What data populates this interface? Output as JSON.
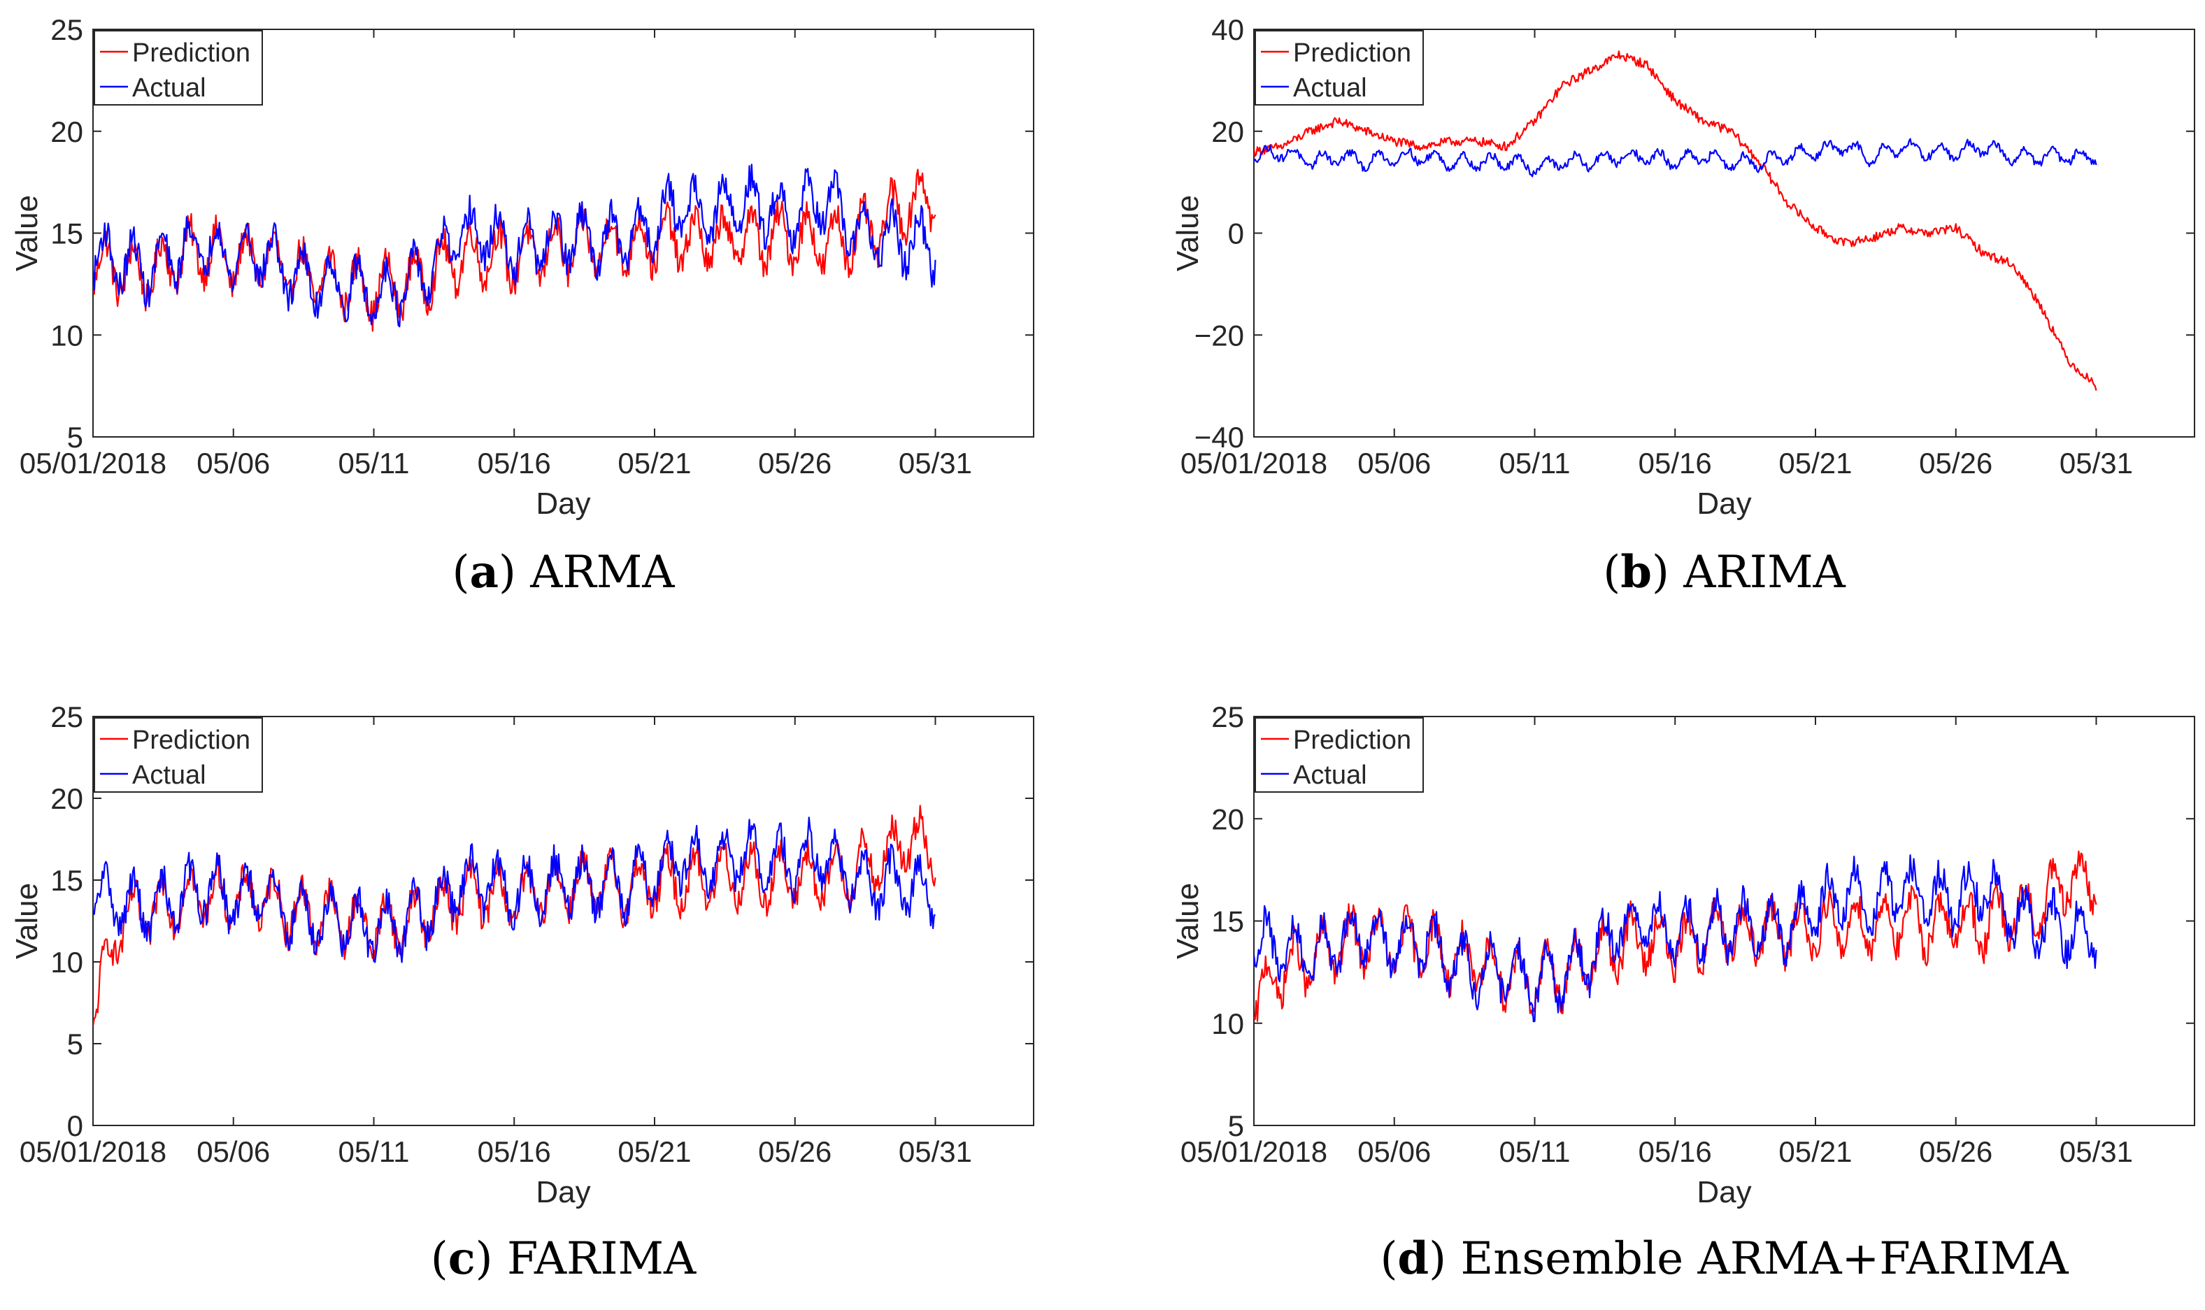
{
  "colors": {
    "prediction": "#ff0000",
    "actual": "#0000ff",
    "axis": "#262626"
  },
  "chart_data": [
    {
      "type": "line",
      "caption_label": "a",
      "caption_text": "ARMA",
      "xlabel": "Day",
      "ylabel": "Value",
      "ylim": [
        5,
        25
      ],
      "yticks": [
        5,
        10,
        15,
        20,
        25
      ],
      "xlim": [
        0,
        33.5
      ],
      "xticks": [
        0,
        5,
        10,
        15,
        20,
        25,
        30
      ],
      "xtick_labels": [
        "05/01/2018",
        "05/06",
        "05/11",
        "05/16",
        "05/21",
        "05/26",
        "05/31"
      ],
      "x_data_end": 30,
      "legend_position": "top-left",
      "series": [
        {
          "name": "Prediction",
          "color": "#ff0000",
          "x": [
            0,
            1,
            2,
            3,
            4,
            5,
            6,
            7,
            8,
            9,
            10,
            11,
            12,
            13,
            14,
            15,
            16,
            17,
            18,
            19,
            20,
            21,
            22,
            23,
            24,
            25,
            26,
            27,
            28,
            29,
            30
          ],
          "values": [
            13.5,
            13.2,
            13.0,
            13.8,
            14.2,
            13.6,
            13.9,
            13.1,
            12.8,
            12.6,
            12.2,
            12.5,
            13.0,
            13.8,
            14.0,
            13.7,
            14.1,
            14.3,
            14.5,
            14.4,
            14.6,
            14.7,
            14.6,
            14.8,
            14.7,
            14.9,
            14.5,
            14.8,
            15.2,
            16.5,
            16.8
          ]
        },
        {
          "name": "Actual",
          "color": "#0000ff",
          "x": [
            0,
            1,
            2,
            3,
            4,
            5,
            6,
            7,
            8,
            9,
            10,
            11,
            12,
            13,
            14,
            15,
            16,
            17,
            18,
            19,
            20,
            21,
            22,
            23,
            24,
            25,
            26,
            27,
            28,
            29,
            30
          ],
          "values": [
            14.0,
            13.6,
            13.2,
            14.0,
            14.5,
            13.8,
            14.1,
            13.0,
            12.6,
            12.4,
            12.0,
            12.3,
            13.2,
            14.8,
            15.0,
            14.2,
            14.5,
            14.8,
            14.6,
            14.7,
            15.5,
            16.5,
            15.8,
            16.6,
            16.2,
            16.0,
            16.8,
            15.2,
            14.8,
            14.6,
            14.2
          ]
        }
      ]
    },
    {
      "type": "line",
      "caption_label": "b",
      "caption_text": "ARIMA",
      "xlabel": "Day",
      "ylabel": "Value",
      "ylim": [
        -40,
        40
      ],
      "yticks": [
        -40,
        -20,
        0,
        20,
        40
      ],
      "ytick_labels": [
        "−40",
        "−20",
        "0",
        "20",
        "40"
      ],
      "xlim": [
        0,
        33.5
      ],
      "xticks": [
        0,
        5,
        10,
        15,
        20,
        25,
        30
      ],
      "xtick_labels": [
        "05/01/2018",
        "05/06",
        "05/11",
        "05/16",
        "05/21",
        "05/26",
        "05/31"
      ],
      "x_data_end": 30,
      "legend_position": "top-left",
      "series": [
        {
          "name": "Prediction",
          "color": "#ff0000",
          "x": [
            0,
            1,
            2,
            3,
            4,
            5,
            6,
            7,
            8,
            9,
            10,
            11,
            12,
            13,
            14,
            15,
            16,
            17,
            18,
            19,
            20,
            21,
            22,
            23,
            24,
            25,
            26,
            27,
            28,
            29,
            30
          ],
          "values": [
            16,
            17,
            20,
            22,
            20,
            18,
            17,
            18,
            18,
            17,
            22,
            29,
            32,
            35,
            33,
            26,
            22,
            20,
            14,
            6,
            1,
            -2,
            -1,
            1,
            0,
            1,
            -4,
            -6,
            -14,
            -25,
            -30
          ]
        },
        {
          "name": "Actual",
          "color": "#0000ff",
          "x": [
            0,
            1,
            2,
            3,
            4,
            5,
            6,
            7,
            8,
            9,
            10,
            11,
            12,
            13,
            14,
            15,
            16,
            17,
            18,
            19,
            20,
            21,
            22,
            23,
            24,
            25,
            26,
            27,
            28,
            29,
            30
          ],
          "values": [
            15,
            16,
            14,
            15,
            14,
            15,
            15,
            14,
            14,
            14,
            13,
            14,
            14,
            15,
            15,
            14,
            15,
            14,
            14,
            15,
            16,
            17,
            15,
            17,
            16,
            16,
            17,
            15,
            15,
            15,
            15
          ]
        }
      ]
    },
    {
      "type": "line",
      "caption_label": "c",
      "caption_text": "FARIMA",
      "xlabel": "Day",
      "ylabel": "Value",
      "ylim": [
        0,
        25
      ],
      "yticks": [
        0,
        5,
        10,
        15,
        20,
        25
      ],
      "xlim": [
        0,
        33.5
      ],
      "xticks": [
        0,
        5,
        10,
        15,
        20,
        25,
        30
      ],
      "xtick_labels": [
        "05/01/2018",
        "05/06",
        "05/11",
        "05/16",
        "05/21",
        "05/26",
        "05/31"
      ],
      "x_data_end": 30,
      "legend_position": "top-left",
      "series": [
        {
          "name": "Prediction",
          "color": "#ff0000",
          "x": [
            0,
            1,
            2,
            3,
            4,
            5,
            6,
            7,
            8,
            9,
            10,
            11,
            12,
            13,
            14,
            15,
            16,
            17,
            18,
            19,
            20,
            21,
            22,
            23,
            24,
            25,
            26,
            27,
            28,
            29,
            30
          ],
          "values": [
            7.0,
            12.5,
            13.0,
            13.8,
            14.2,
            13.8,
            14.0,
            13.2,
            12.8,
            12.6,
            12.2,
            12.4,
            13.0,
            14.0,
            14.2,
            13.8,
            14.3,
            14.8,
            14.6,
            14.5,
            14.8,
            15.0,
            15.2,
            15.3,
            15.0,
            15.2,
            15.0,
            15.6,
            16.0,
            17.5,
            17.0
          ]
        },
        {
          "name": "Actual",
          "color": "#0000ff",
          "x": [
            0,
            1,
            2,
            3,
            4,
            5,
            6,
            7,
            8,
            9,
            10,
            11,
            12,
            13,
            14,
            15,
            16,
            17,
            18,
            19,
            20,
            21,
            22,
            23,
            24,
            25,
            26,
            27,
            28,
            29,
            30
          ],
          "values": [
            14.0,
            13.6,
            13.2,
            14.0,
            14.5,
            13.8,
            14.1,
            13.0,
            12.6,
            12.4,
            12.0,
            12.3,
            13.2,
            14.8,
            15.0,
            14.2,
            14.5,
            14.8,
            14.6,
            14.7,
            15.5,
            16.5,
            15.8,
            16.6,
            16.2,
            16.0,
            16.8,
            15.2,
            14.8,
            14.6,
            14.2
          ]
        }
      ]
    },
    {
      "type": "line",
      "caption_label": "d",
      "caption_text": "Ensemble ARMA+FARIMA",
      "xlabel": "Day",
      "ylabel": "Value",
      "ylim": [
        5,
        25
      ],
      "yticks": [
        5,
        10,
        15,
        20,
        25
      ],
      "xlim": [
        0,
        33.5
      ],
      "xticks": [
        0,
        5,
        10,
        15,
        20,
        25,
        30
      ],
      "xtick_labels": [
        "05/01/2018",
        "05/06",
        "05/11",
        "05/16",
        "05/21",
        "05/26",
        "05/31"
      ],
      "x_data_end": 30,
      "legend_position": "top-left",
      "series": [
        {
          "name": "Prediction",
          "color": "#ff0000",
          "x": [
            0,
            1,
            2,
            3,
            4,
            5,
            6,
            7,
            8,
            9,
            10,
            11,
            12,
            13,
            14,
            15,
            16,
            17,
            18,
            19,
            20,
            21,
            22,
            23,
            24,
            25,
            26,
            27,
            28,
            29,
            30
          ],
          "values": [
            11.0,
            12.6,
            13.0,
            13.8,
            14.2,
            13.7,
            14.0,
            13.2,
            12.8,
            12.5,
            12.1,
            12.4,
            13.0,
            13.9,
            14.1,
            13.8,
            14.2,
            14.5,
            14.5,
            14.4,
            14.7,
            14.8,
            14.8,
            15.0,
            14.8,
            15.0,
            14.8,
            15.2,
            15.6,
            17.0,
            16.8
          ]
        },
        {
          "name": "Actual",
          "color": "#0000ff",
          "x": [
            0,
            1,
            2,
            3,
            4,
            5,
            6,
            7,
            8,
            9,
            10,
            11,
            12,
            13,
            14,
            15,
            16,
            17,
            18,
            19,
            20,
            21,
            22,
            23,
            24,
            25,
            26,
            27,
            28,
            29,
            30
          ],
          "values": [
            14.0,
            13.6,
            13.2,
            14.0,
            14.5,
            13.8,
            14.1,
            13.0,
            12.6,
            12.4,
            12.0,
            12.3,
            13.2,
            14.8,
            15.0,
            14.2,
            14.5,
            14.8,
            14.6,
            14.7,
            15.5,
            16.5,
            15.8,
            16.6,
            16.2,
            16.0,
            16.8,
            15.2,
            14.8,
            14.6,
            14.2
          ]
        }
      ]
    }
  ]
}
